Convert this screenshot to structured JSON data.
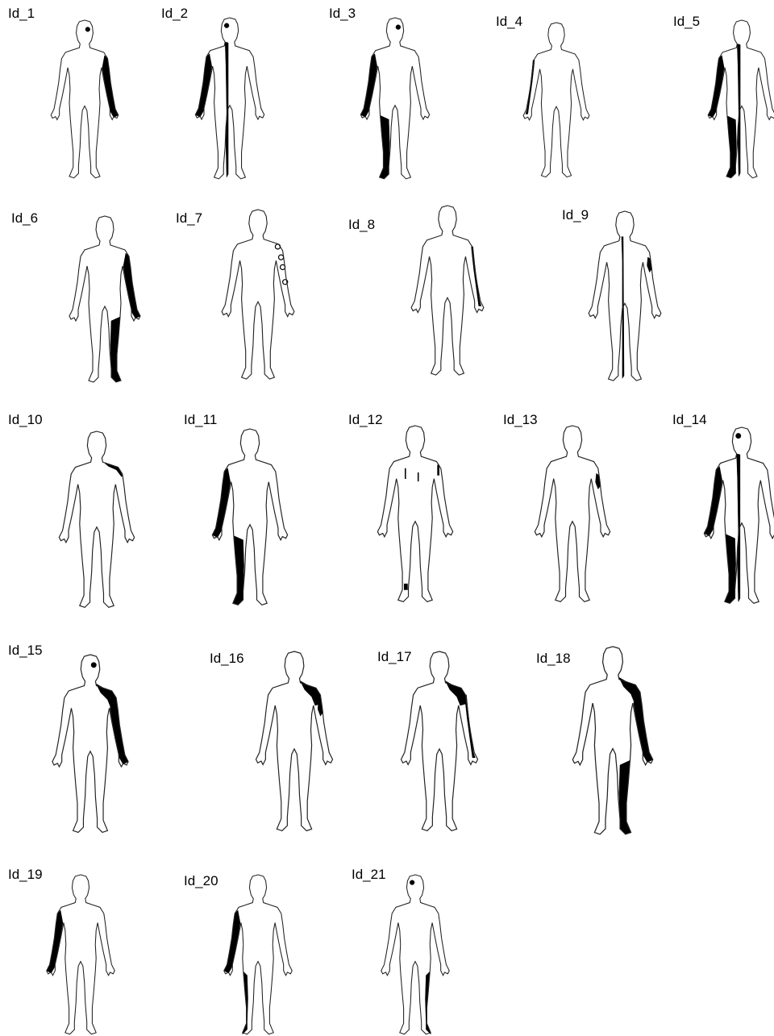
{
  "panels": [
    {
      "label": "Id_1"
    },
    {
      "label": "Id_2"
    },
    {
      "label": "Id_3"
    },
    {
      "label": "Id_4"
    },
    {
      "label": "Id_5"
    },
    {
      "label": "Id_6"
    },
    {
      "label": "Id_7"
    },
    {
      "label": "Id_8"
    },
    {
      "label": "Id_9"
    },
    {
      "label": "Id_10"
    },
    {
      "label": "Id_11"
    },
    {
      "label": "Id_12"
    },
    {
      "label": "Id_13"
    },
    {
      "label": "Id_14"
    },
    {
      "label": "Id_15"
    },
    {
      "label": "Id_16"
    },
    {
      "label": "Id_17"
    },
    {
      "label": "Id_18"
    },
    {
      "label": "Id_19"
    },
    {
      "label": "Id_20"
    },
    {
      "label": "Id_21"
    }
  ]
}
